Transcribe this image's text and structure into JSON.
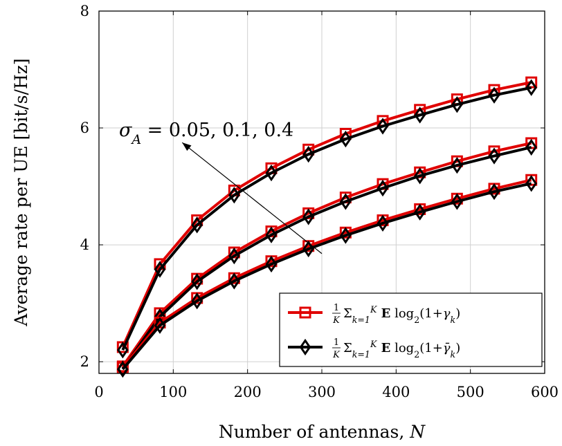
{
  "chart_data": {
    "type": "line",
    "title": "",
    "xlabel": "Number of antennas, N",
    "ylabel": "Average rate per UE [bit/s/Hz]",
    "xlim": [
      0,
      600
    ],
    "ylim": [
      1.8,
      8
    ],
    "xticks": [
      0,
      100,
      200,
      300,
      400,
      500,
      600
    ],
    "yticks": [
      2,
      4,
      6,
      8
    ],
    "grid": true,
    "legend_position": "bottom-right",
    "x": [
      32,
      82,
      132,
      182,
      232,
      282,
      332,
      382,
      432,
      482,
      532,
      582
    ],
    "annotation": {
      "text": "σ_A = 0.05, 0.1, 0.4",
      "arrow": {
        "from": [
          300,
          3.85
        ],
        "to": [
          112,
          5.75
        ]
      }
    },
    "series": [
      {
        "name": "1/K Σ_{k=1}^K E log2(1+γ_k)",
        "group": "σ_A=0.05",
        "color": "#e00000",
        "marker": "square",
        "values": [
          2.25,
          3.67,
          4.42,
          4.93,
          5.31,
          5.63,
          5.9,
          6.12,
          6.31,
          6.49,
          6.65,
          6.78
        ]
      },
      {
        "name": "1/K Σ_{k=1}^K E log2(1+γ̄_k)",
        "group": "σ_A=0.05",
        "color": "#000000",
        "marker": "diamond",
        "values": [
          2.2,
          3.58,
          4.34,
          4.85,
          5.23,
          5.55,
          5.81,
          6.03,
          6.22,
          6.4,
          6.56,
          6.69
        ]
      },
      {
        "name": "1/K Σ_{k=1}^K E log2(1+γ_k)",
        "group": "σ_A=0.1",
        "color": "#e00000",
        "marker": "square",
        "values": [
          1.92,
          2.83,
          3.42,
          3.87,
          4.23,
          4.54,
          4.81,
          5.04,
          5.24,
          5.43,
          5.6,
          5.74
        ]
      },
      {
        "name": "1/K Σ_{k=1}^K E log2(1+γ̄_k)",
        "group": "σ_A=0.1",
        "color": "#000000",
        "marker": "diamond",
        "values": [
          1.88,
          2.77,
          3.37,
          3.81,
          4.17,
          4.48,
          4.74,
          4.97,
          5.18,
          5.36,
          5.52,
          5.67
        ]
      },
      {
        "name": "1/K Σ_{k=1}^K E log2(1+γ_k)",
        "group": "σ_A=0.4",
        "color": "#e00000",
        "marker": "square",
        "values": [
          1.9,
          2.67,
          3.09,
          3.43,
          3.72,
          3.98,
          4.21,
          4.42,
          4.61,
          4.79,
          4.96,
          5.11
        ]
      },
      {
        "name": "1/K Σ_{k=1}^K E log2(1+γ̄_k)",
        "group": "σ_A=0.4",
        "color": "#000000",
        "marker": "diamond",
        "values": [
          1.87,
          2.62,
          3.04,
          3.38,
          3.67,
          3.93,
          4.16,
          4.37,
          4.56,
          4.74,
          4.91,
          5.05
        ]
      }
    ],
    "legend": [
      {
        "label": "1/K Σ_{k=1}^K E log2(1+γ_k)",
        "color": "#e00000",
        "marker": "square"
      },
      {
        "label": "1/K Σ_{k=1}^K E log2(1+γ̄_k)",
        "color": "#000000",
        "marker": "diamond"
      }
    ]
  }
}
